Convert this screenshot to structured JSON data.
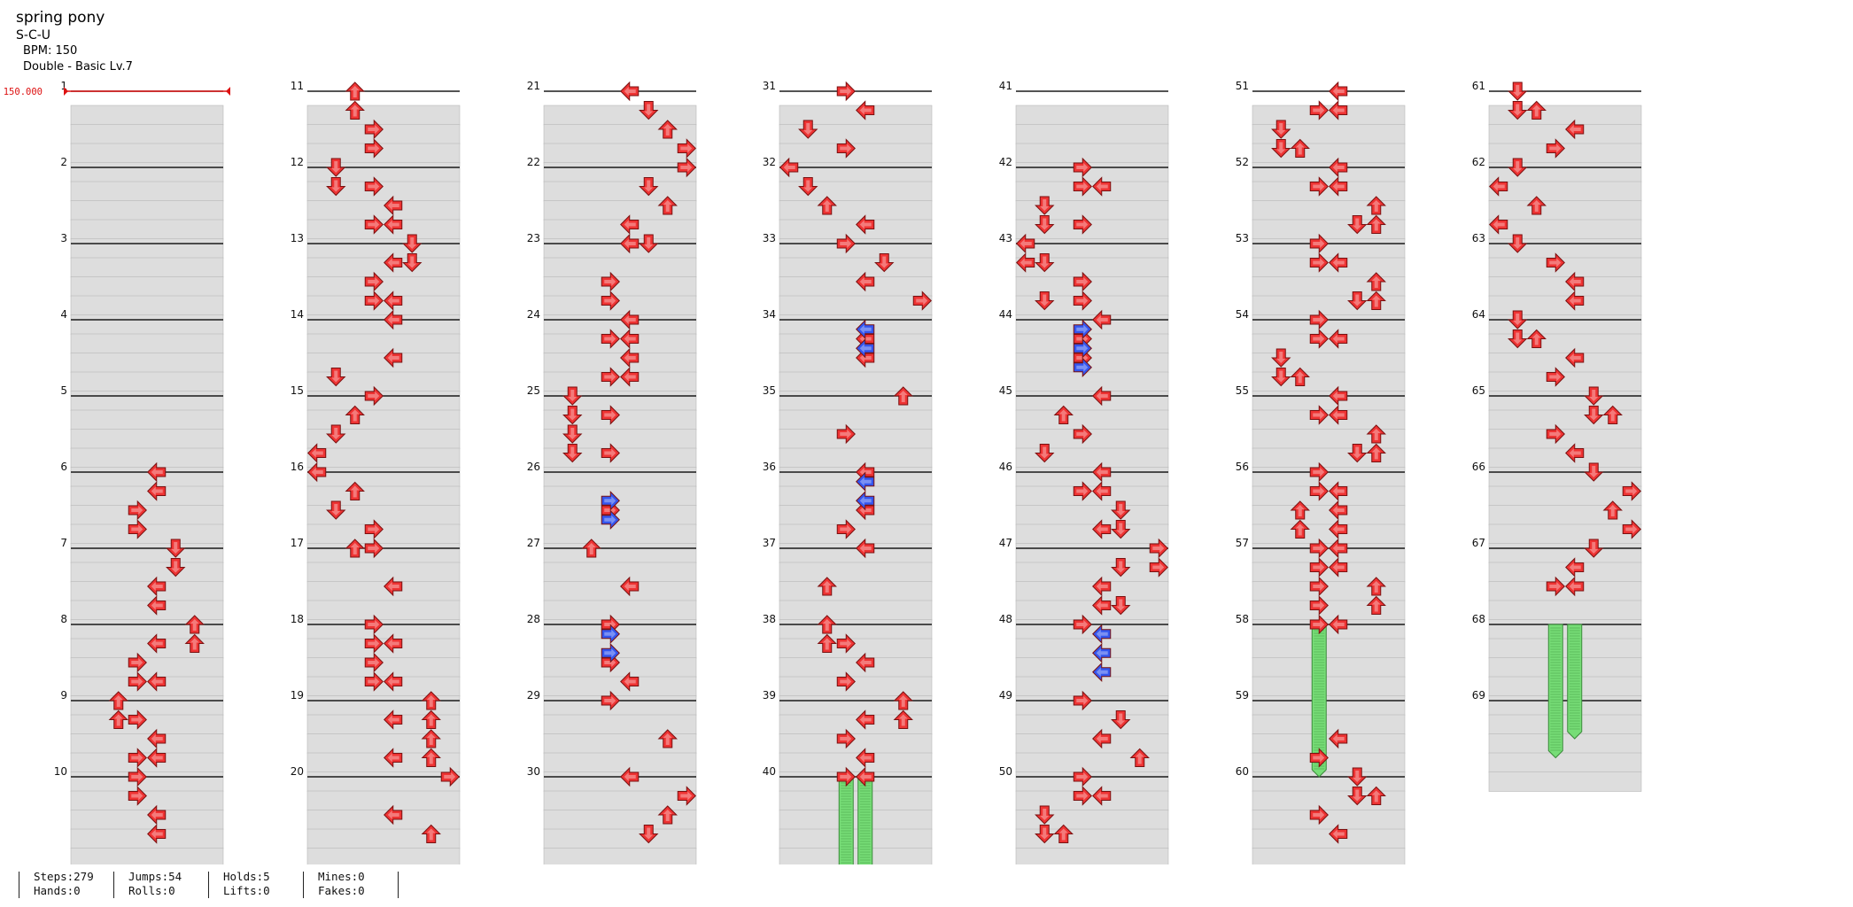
{
  "song": {
    "title": "spring pony",
    "artist": "S-C-U",
    "bpm_label": "BPM: 150",
    "difficulty": "Double - Basic Lv.7",
    "bpm_marker": "150.000"
  },
  "stats": {
    "steps": "Steps:279",
    "hands": "Hands:0",
    "jumps": "Jumps:54",
    "rolls": "Rolls:0",
    "holds": "Holds:5",
    "lifts": "Lifts:0",
    "mines": "Mines:0",
    "fakes": "Fakes:0"
  },
  "chart_data": {
    "type": "step-chart",
    "layout": "7 columns of 10 measures",
    "lanes": 8,
    "lane_directions": [
      "left",
      "down",
      "up",
      "right",
      "left",
      "down",
      "up",
      "right"
    ],
    "measure_count": 69,
    "rows_per_measure": 4,
    "note_colors": {
      "quarter": "#ee3333",
      "eighth": "#3355ee",
      "hold": "#77dd77"
    },
    "notes": [
      [
        6,
        0,
        4
      ],
      [
        6,
        1,
        4
      ],
      [
        6,
        2,
        3
      ],
      [
        6,
        3,
        3
      ],
      [
        7,
        0,
        5
      ],
      [
        7,
        1,
        5
      ],
      [
        7,
        2,
        4
      ],
      [
        7,
        3,
        4
      ],
      [
        8,
        0,
        6
      ],
      [
        8,
        1,
        4
      ],
      [
        8,
        1,
        6
      ],
      [
        8,
        2,
        3
      ],
      [
        8,
        3,
        3
      ],
      [
        8,
        3,
        4
      ],
      [
        9,
        0,
        2
      ],
      [
        9,
        1,
        2
      ],
      [
        9,
        1,
        3
      ],
      [
        9,
        2,
        4
      ],
      [
        9,
        3,
        3
      ],
      [
        9,
        3,
        4
      ],
      [
        10,
        0,
        3
      ],
      [
        10,
        1,
        3
      ],
      [
        10,
        2,
        4
      ],
      [
        10,
        3,
        4
      ],
      [
        11,
        0,
        2
      ],
      [
        11,
        1,
        2
      ],
      [
        11,
        2,
        3
      ],
      [
        11,
        3,
        3
      ],
      [
        12,
        0,
        1
      ],
      [
        12,
        1,
        1
      ],
      [
        12,
        1,
        3
      ],
      [
        12,
        2,
        4
      ],
      [
        12,
        3,
        3
      ],
      [
        12,
        3,
        4
      ],
      [
        13,
        0,
        5
      ],
      [
        13,
        1,
        4
      ],
      [
        13,
        1,
        5
      ],
      [
        13,
        2,
        3
      ],
      [
        13,
        3,
        3
      ],
      [
        13,
        3,
        4
      ],
      [
        14,
        0,
        4
      ],
      [
        14,
        2,
        4
      ],
      [
        14,
        3,
        1
      ],
      [
        15,
        0,
        3
      ],
      [
        15,
        1,
        2
      ],
      [
        15,
        2,
        1
      ],
      [
        15,
        3,
        0
      ],
      [
        16,
        0,
        0
      ],
      [
        16,
        1,
        2
      ],
      [
        16,
        2,
        1
      ],
      [
        16,
        3,
        3
      ],
      [
        17,
        0,
        2
      ],
      [
        17,
        0,
        3
      ],
      [
        17,
        2,
        4
      ],
      [
        18,
        0,
        3
      ],
      [
        18,
        1,
        3
      ],
      [
        18,
        1,
        4
      ],
      [
        18,
        2,
        3
      ],
      [
        18,
        3,
        3
      ],
      [
        18,
        3,
        4
      ],
      [
        19,
        0,
        6
      ],
      [
        19,
        1,
        4
      ],
      [
        19,
        1,
        6
      ],
      [
        19,
        2,
        6
      ],
      [
        19,
        3,
        4
      ],
      [
        19,
        3,
        6
      ],
      [
        20,
        0,
        7
      ],
      [
        20,
        2,
        4
      ],
      [
        20,
        3,
        6
      ],
      [
        21,
        0,
        4
      ],
      [
        21,
        1,
        5
      ],
      [
        21,
        2,
        6
      ],
      [
        21,
        3,
        7
      ],
      [
        22,
        0,
        7
      ],
      [
        22,
        1,
        5
      ],
      [
        22,
        2,
        6
      ],
      [
        22,
        3,
        4
      ],
      [
        23,
        0,
        4
      ],
      [
        23,
        0,
        5
      ],
      [
        23,
        2,
        3
      ],
      [
        23,
        3,
        3
      ],
      [
        24,
        0,
        4
      ],
      [
        24,
        1,
        3
      ],
      [
        24,
        1,
        4
      ],
      [
        24,
        2,
        4
      ],
      [
        24,
        3,
        3
      ],
      [
        24,
        3,
        4
      ],
      [
        25,
        0,
        1
      ],
      [
        25,
        1,
        1
      ],
      [
        25,
        1,
        3
      ],
      [
        25,
        2,
        1
      ],
      [
        25,
        3,
        1
      ],
      [
        25,
        3,
        3
      ],
      [
        26,
        2,
        3
      ],
      [
        27,
        0,
        2
      ],
      [
        27,
        2,
        4
      ],
      [
        28,
        0,
        3
      ],
      [
        28,
        2,
        3
      ],
      [
        28,
        3,
        4
      ],
      [
        29,
        0,
        3
      ],
      [
        29,
        2,
        6
      ],
      [
        30,
        0,
        4
      ],
      [
        30,
        1,
        7
      ],
      [
        30,
        2,
        6
      ],
      [
        30,
        3,
        5
      ],
      [
        31,
        0,
        3
      ],
      [
        31,
        1,
        4
      ],
      [
        31,
        2,
        1
      ],
      [
        31,
        3,
        3
      ],
      [
        32,
        0,
        0
      ],
      [
        32,
        1,
        1
      ],
      [
        32,
        2,
        2
      ],
      [
        32,
        3,
        4
      ],
      [
        33,
        0,
        3
      ],
      [
        33,
        1,
        5
      ],
      [
        33,
        2,
        4
      ],
      [
        33,
        3,
        7
      ],
      [
        34,
        1,
        4
      ],
      [
        34,
        2,
        4
      ],
      [
        35,
        0,
        6
      ],
      [
        35,
        2,
        3
      ],
      [
        36,
        0,
        4
      ],
      [
        36,
        2,
        4
      ],
      [
        36,
        3,
        3
      ],
      [
        37,
        0,
        4
      ],
      [
        37,
        2,
        2
      ],
      [
        38,
        0,
        2
      ],
      [
        38,
        1,
        2
      ],
      [
        38,
        1,
        3
      ],
      [
        38,
        2,
        4
      ],
      [
        38,
        3,
        3
      ],
      [
        39,
        0,
        6
      ],
      [
        39,
        1,
        4
      ],
      [
        39,
        1,
        6
      ],
      [
        39,
        2,
        3
      ],
      [
        39,
        3,
        4
      ],
      [
        40,
        0,
        3
      ],
      [
        40,
        0,
        4
      ],
      [
        42,
        0,
        3
      ],
      [
        42,
        1,
        3
      ],
      [
        42,
        1,
        4
      ],
      [
        42,
        2,
        1
      ],
      [
        42,
        3,
        1
      ],
      [
        42,
        3,
        3
      ],
      [
        43,
        0,
        0
      ],
      [
        43,
        1,
        0
      ],
      [
        43,
        1,
        1
      ],
      [
        43,
        2,
        3
      ],
      [
        43,
        3,
        1
      ],
      [
        43,
        3,
        3
      ],
      [
        44,
        0,
        4
      ],
      [
        44,
        1,
        3
      ],
      [
        44,
        2,
        3
      ],
      [
        45,
        0,
        4
      ],
      [
        45,
        1,
        2
      ],
      [
        45,
        2,
        3
      ],
      [
        45,
        3,
        1
      ],
      [
        46,
        0,
        4
      ],
      [
        46,
        1,
        3
      ],
      [
        46,
        1,
        4
      ],
      [
        46,
        2,
        5
      ],
      [
        46,
        3,
        4
      ],
      [
        46,
        3,
        5
      ],
      [
        47,
        0,
        7
      ],
      [
        47,
        1,
        5
      ],
      [
        47,
        1,
        7
      ],
      [
        47,
        2,
        4
      ],
      [
        47,
        3,
        4
      ],
      [
        47,
        3,
        5
      ],
      [
        48,
        0,
        3
      ],
      [
        49,
        0,
        3
      ],
      [
        49,
        1,
        5
      ],
      [
        49,
        2,
        4
      ],
      [
        49,
        3,
        6
      ],
      [
        50,
        0,
        3
      ],
      [
        50,
        1,
        3
      ],
      [
        50,
        1,
        4
      ],
      [
        50,
        2,
        1
      ],
      [
        50,
        3,
        1
      ],
      [
        50,
        3,
        2
      ],
      [
        51,
        0,
        4
      ],
      [
        51,
        1,
        3
      ],
      [
        51,
        1,
        4
      ],
      [
        51,
        2,
        1
      ],
      [
        51,
        3,
        1
      ],
      [
        51,
        3,
        2
      ],
      [
        52,
        0,
        4
      ],
      [
        52,
        1,
        3
      ],
      [
        52,
        1,
        4
      ],
      [
        52,
        2,
        6
      ],
      [
        52,
        3,
        5
      ],
      [
        52,
        3,
        6
      ],
      [
        53,
        0,
        3
      ],
      [
        53,
        1,
        3
      ],
      [
        53,
        1,
        4
      ],
      [
        53,
        2,
        6
      ],
      [
        53,
        3,
        5
      ],
      [
        53,
        3,
        6
      ],
      [
        54,
        0,
        3
      ],
      [
        54,
        1,
        3
      ],
      [
        54,
        1,
        4
      ],
      [
        54,
        2,
        1
      ],
      [
        54,
        3,
        1
      ],
      [
        54,
        3,
        2
      ],
      [
        55,
        0,
        4
      ],
      [
        55,
        1,
        3
      ],
      [
        55,
        1,
        4
      ],
      [
        55,
        2,
        6
      ],
      [
        55,
        3,
        5
      ],
      [
        55,
        3,
        6
      ],
      [
        56,
        0,
        3
      ],
      [
        56,
        1,
        3
      ],
      [
        56,
        1,
        4
      ],
      [
        56,
        2,
        2
      ],
      [
        56,
        2,
        4
      ],
      [
        56,
        3,
        2
      ],
      [
        56,
        3,
        4
      ],
      [
        57,
        0,
        3
      ],
      [
        57,
        0,
        4
      ],
      [
        57,
        1,
        3
      ],
      [
        57,
        1,
        4
      ],
      [
        57,
        2,
        3
      ],
      [
        57,
        2,
        6
      ],
      [
        57,
        3,
        3
      ],
      [
        57,
        3,
        6
      ],
      [
        58,
        0,
        4
      ],
      [
        58,
        0,
        3
      ],
      [
        59,
        2,
        4
      ],
      [
        59,
        3,
        3
      ],
      [
        60,
        0,
        5
      ],
      [
        60,
        1,
        5
      ],
      [
        60,
        1,
        6
      ],
      [
        60,
        2,
        3
      ],
      [
        60,
        3,
        4
      ],
      [
        61,
        0,
        1
      ],
      [
        61,
        1,
        1
      ],
      [
        61,
        1,
        2
      ],
      [
        61,
        2,
        4
      ],
      [
        61,
        3,
        3
      ],
      [
        62,
        0,
        1
      ],
      [
        62,
        1,
        0
      ],
      [
        62,
        2,
        2
      ],
      [
        62,
        3,
        0
      ],
      [
        63,
        0,
        1
      ],
      [
        63,
        1,
        3
      ],
      [
        63,
        2,
        4
      ],
      [
        63,
        3,
        4
      ],
      [
        64,
        0,
        1
      ],
      [
        64,
        1,
        1
      ],
      [
        64,
        1,
        2
      ],
      [
        64,
        2,
        4
      ],
      [
        64,
        3,
        3
      ],
      [
        65,
        0,
        5
      ],
      [
        65,
        1,
        5
      ],
      [
        65,
        1,
        6
      ],
      [
        65,
        2,
        3
      ],
      [
        65,
        3,
        4
      ],
      [
        66,
        0,
        5
      ],
      [
        66,
        1,
        7
      ],
      [
        66,
        2,
        6
      ],
      [
        66,
        3,
        7
      ],
      [
        67,
        0,
        5
      ],
      [
        67,
        1,
        4
      ],
      [
        67,
        2,
        3
      ],
      [
        67,
        2,
        4
      ]
    ],
    "eighth_notes": [
      [
        26,
        1.5,
        3
      ],
      [
        26,
        2.5,
        3
      ],
      [
        28,
        0.5,
        3
      ],
      [
        28,
        1.5,
        3
      ],
      [
        34,
        0.5,
        4
      ],
      [
        34,
        1.5,
        4
      ],
      [
        36,
        0.5,
        4
      ],
      [
        36,
        1.5,
        4
      ],
      [
        44,
        0.5,
        3
      ],
      [
        44,
        1.5,
        3
      ],
      [
        44,
        2.5,
        3
      ],
      [
        48,
        0.5,
        4
      ],
      [
        48,
        1.5,
        4
      ],
      [
        48,
        2.5,
        4
      ]
    ],
    "holds": [
      [
        40,
        0,
        3,
        2
      ],
      [
        40,
        0,
        4,
        1.5
      ],
      [
        58,
        0,
        3,
        2
      ],
      [
        68,
        0,
        3,
        1.75
      ],
      [
        68,
        0,
        4,
        1.5
      ]
    ]
  }
}
